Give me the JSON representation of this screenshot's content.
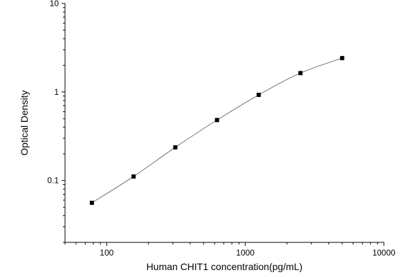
{
  "chart_data": {
    "type": "scatter",
    "title": "",
    "xlabel": "Human CHIT1 concentration(pg/mL)",
    "ylabel": "Optical Density",
    "x_scale": "log",
    "y_scale": "log",
    "xlim": [
      50,
      10000
    ],
    "ylim": [
      0.02,
      10
    ],
    "x_ticks": [
      "100",
      "1000",
      "10000"
    ],
    "y_ticks": [
      "0.1",
      "1",
      "10"
    ],
    "grid": false,
    "legend": "none",
    "marker_color": "#000000",
    "line_color": "#555555",
    "series": [
      {
        "x": [
          78.125,
          156.25,
          312.5,
          625,
          1250,
          2500,
          5000
        ],
        "y": [
          0.056,
          0.111,
          0.237,
          0.482,
          0.928,
          1.636,
          2.416
        ],
        "fit_line": true
      }
    ]
  }
}
